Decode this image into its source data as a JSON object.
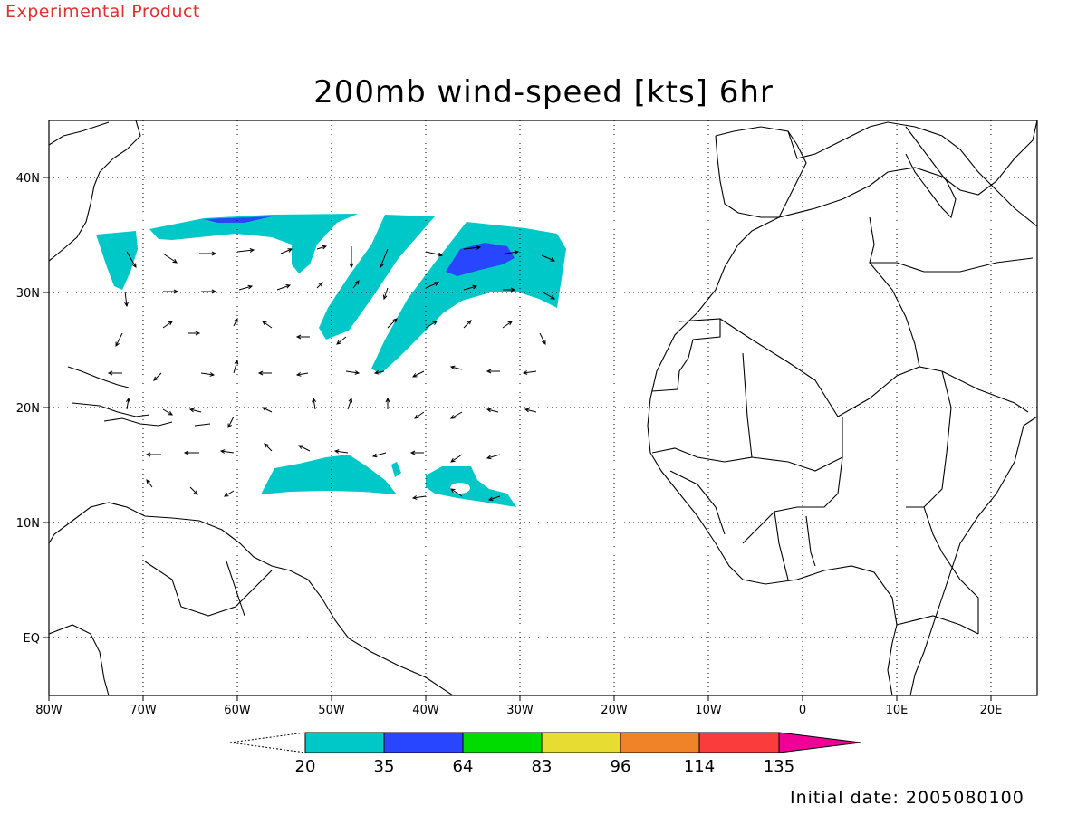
{
  "header": {
    "experimental_label": "Experimental Product",
    "title": "200mb wind-speed [kts] 6hr"
  },
  "footer": {
    "initial_date": "Initial date: 2005080100"
  },
  "map": {
    "lon_range": [
      -80,
      25
    ],
    "lat_range": [
      -5,
      45
    ],
    "x_tick_labels": [
      "80W",
      "70W",
      "60W",
      "50W",
      "40W",
      "30W",
      "20W",
      "10W",
      "0",
      "10E",
      "20E"
    ],
    "y_tick_labels": [
      "40N",
      "30N",
      "20N",
      "10N",
      "EQ"
    ],
    "grid": "dotted"
  },
  "colorbar": {
    "thresholds": [
      "20",
      "35",
      "64",
      "83",
      "96",
      "114",
      "135"
    ],
    "colors": [
      "#00c8c8",
      "#2846ff",
      "#00dc00",
      "#e6dc32",
      "#f08228",
      "#fa3c3c",
      "#f00096"
    ]
  },
  "wind_shading": [
    {
      "level": "20-35 kts",
      "color": "#00c8c8"
    },
    {
      "level": "35-64 kts",
      "color": "#2846ff"
    }
  ]
}
